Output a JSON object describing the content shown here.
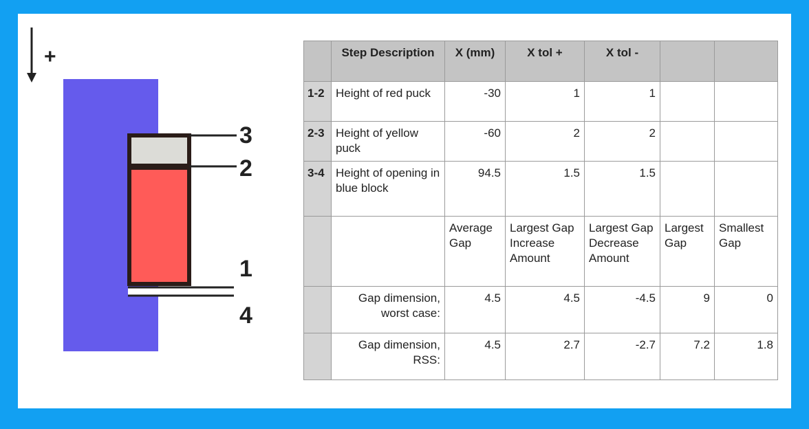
{
  "diagram": {
    "direction_symbol": "+",
    "points": {
      "p1": "1",
      "p2": "2",
      "p3": "3",
      "p4": "4"
    },
    "colors": {
      "blue_block": "#655bec",
      "red_puck": "#ff5b58",
      "yellow_puck": "#dcdcd7",
      "outline": "#2a1c18"
    }
  },
  "table": {
    "headers": [
      "",
      "Step Description",
      "X (mm)",
      "X tol +",
      "X tol -",
      "",
      ""
    ],
    "rows": [
      {
        "step": "1-2",
        "desc": "Height of red puck",
        "x": "-30",
        "tol_plus": "1",
        "tol_minus": "1"
      },
      {
        "step": "2-3",
        "desc": "Height of yellow puck",
        "x": "-60",
        "tol_plus": "2",
        "tol_minus": "2"
      },
      {
        "step": "3-4",
        "desc": "Height of opening in blue block",
        "x": "94.5",
        "tol_plus": "1.5",
        "tol_minus": "1.5"
      }
    ],
    "result_headers": [
      "Average Gap",
      "Largest Gap Increase Amount",
      "Largest Gap Decrease Amount",
      "Largest Gap",
      "Smallest Gap"
    ],
    "results": [
      {
        "label": "Gap dimension, worst case:",
        "values": [
          "4.5",
          "4.5",
          "-4.5",
          "9",
          "0"
        ]
      },
      {
        "label": "Gap dimension, RSS:",
        "values": [
          "4.5",
          "2.7",
          "-2.7",
          "7.2",
          "1.8"
        ]
      }
    ]
  }
}
